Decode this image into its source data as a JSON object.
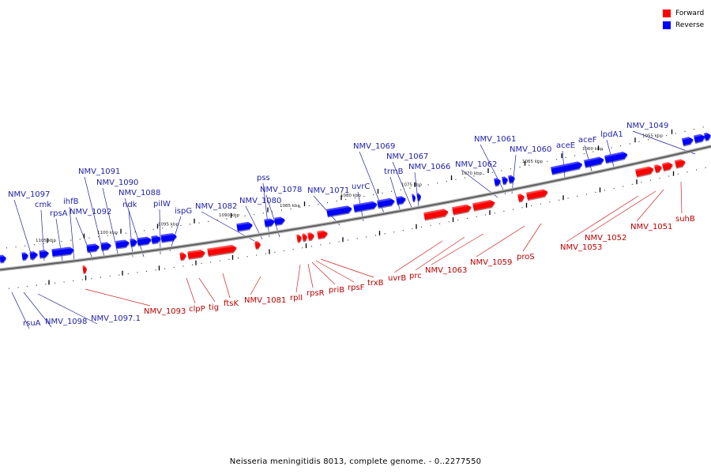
{
  "caption": "Neisseria meningitidis 8013, complete genome. - 0..2277550",
  "colors": {
    "forward": "#ff0000",
    "reverse": "#0000ff",
    "forward_label": "#bb0000",
    "reverse_label": "#1f1fa6",
    "backbone": "#7f7f7f"
  },
  "legend": [
    {
      "label": "Forward",
      "color": "#ff0000"
    },
    {
      "label": "Reverse",
      "color": "#0000ff"
    }
  ],
  "scale_labels": [
    {
      "text": "1105 kbp",
      "kbp": 1105
    },
    {
      "text": "1100 kbp",
      "kbp": 1100
    },
    {
      "text": "1095 kbp",
      "kbp": 1095
    },
    {
      "text": "1090 kbp",
      "kbp": 1090
    },
    {
      "text": "1085 kbp",
      "kbp": 1085
    },
    {
      "text": "1080 kbp",
      "kbp": 1080
    },
    {
      "text": "1075 kbp",
      "kbp": 1075
    },
    {
      "text": "1070 kbp",
      "kbp": 1070
    },
    {
      "text": "1065 kbp",
      "kbp": 1065
    },
    {
      "text": "1060 kbp",
      "kbp": 1060
    },
    {
      "text": "1055 kbp",
      "kbp": 1055
    }
  ],
  "reverse_genes": [
    "NMV_1097",
    "cmk",
    "rpsA",
    "ihfB",
    "NMV_1092",
    "NMV_1091",
    "NMV_1090",
    "ndk",
    "NMV_1088",
    "pilW",
    "ispG",
    "NMV_1082",
    "NMV_1080",
    "pss",
    "NMV_1078",
    "NMV_1071",
    "uvrC",
    "NMV_1069",
    "trmB",
    "NMV_1067",
    "NMV_1066",
    "NMV_1062",
    "NMV_1061",
    "NMV_1060",
    "aceE",
    "aceF",
    "lpdA1",
    "NMV_1049",
    "rsuA",
    "NMV_1098",
    "NMV_1097.1"
  ],
  "forward_genes": [
    "NMV_1093",
    "clpP",
    "tig",
    "ftsK",
    "NMV_1081",
    "rplI",
    "rpsR",
    "priB",
    "rpsF",
    "trxB",
    "uvrB",
    "prc",
    "NMV_1063",
    "NMV_1059",
    "proS",
    "NMV_1053",
    "NMV_1052",
    "NMV_1051",
    "suhB"
  ]
}
